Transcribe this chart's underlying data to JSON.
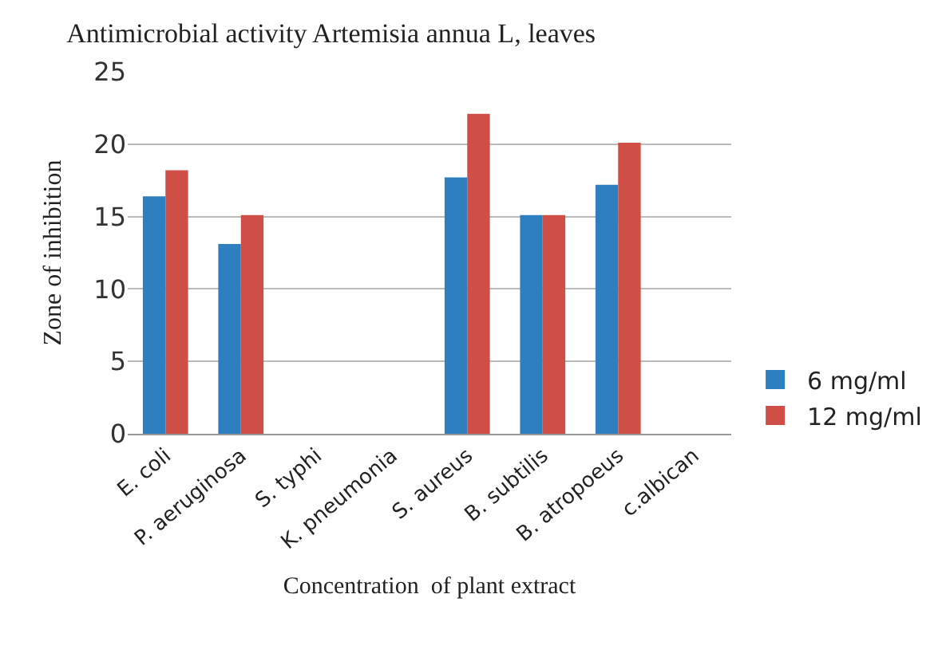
{
  "chart_data": {
    "type": "bar",
    "title": "Antimicrobial activity Artemisia annua L, leaves",
    "xlabel": "Concentration  of plant extract",
    "ylabel": "Zone of inhibition",
    "categories": [
      "E. coli",
      "P. aeruginosa",
      "S. typhi",
      "K. pneumonia",
      "S. aureus",
      "B. subtilis",
      "B. atropoeus",
      "c.albican"
    ],
    "series": [
      {
        "name": "6 mg/ml",
        "color": "#2e7fc0",
        "values": [
          16.4,
          13.1,
          null,
          null,
          17.7,
          15.1,
          17.2,
          null
        ]
      },
      {
        "name": "12 mg/ml",
        "color": "#cf4f47",
        "values": [
          18.2,
          15.1,
          null,
          null,
          22.1,
          15.1,
          20.1,
          null
        ]
      }
    ],
    "ylim": [
      0,
      25
    ],
    "yticks": [
      0,
      5,
      10,
      15,
      20,
      25
    ],
    "grid": "y",
    "legend": "right"
  }
}
